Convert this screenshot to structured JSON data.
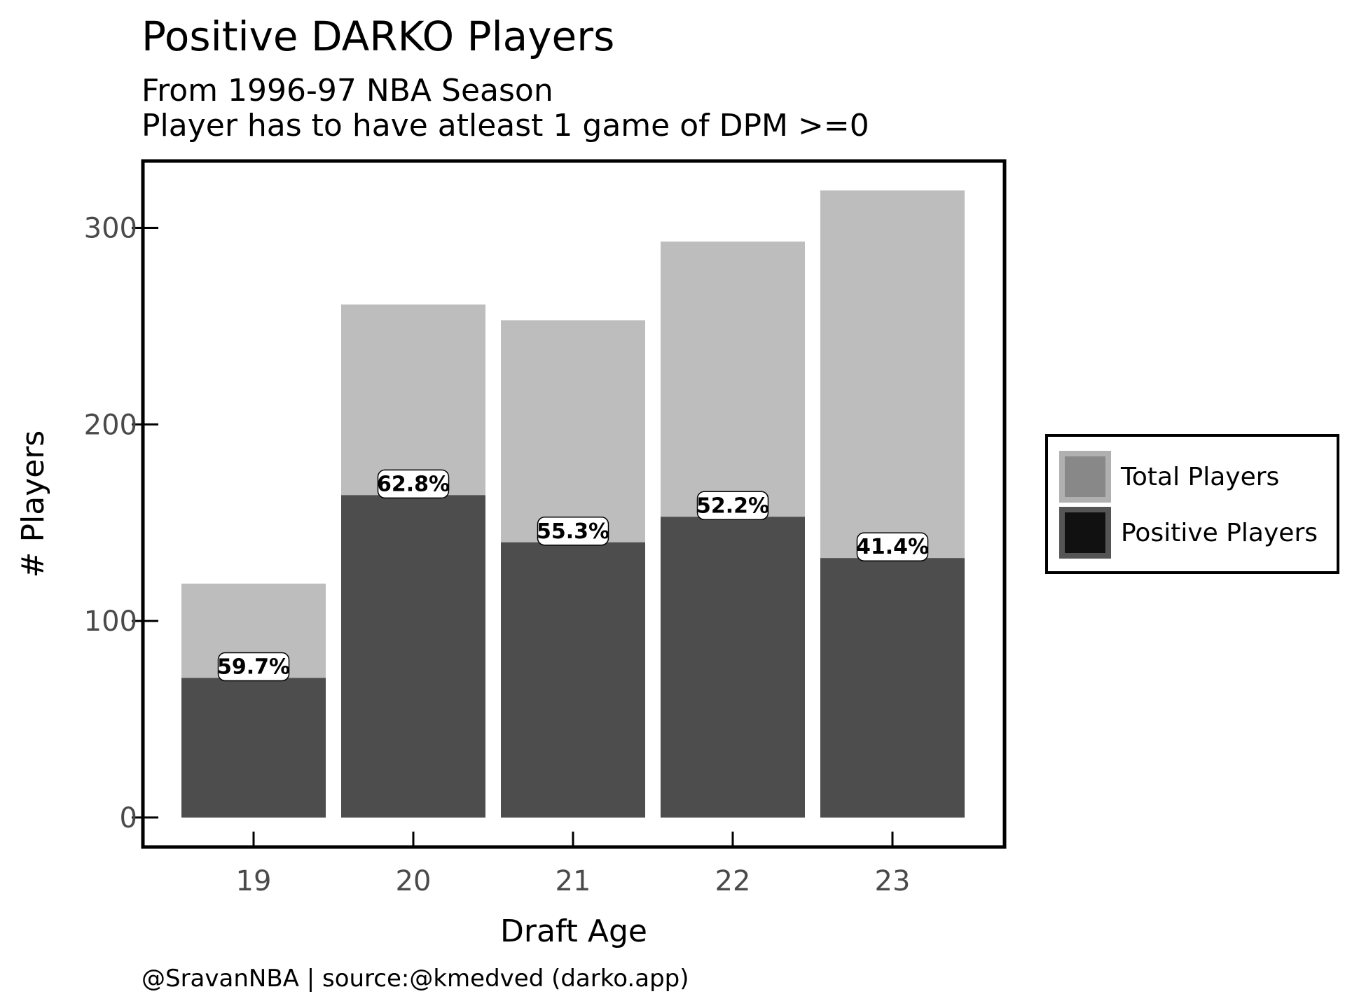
{
  "header": {
    "title": "Positive DARKO Players",
    "subtitle_line1": "From 1996-97 NBA Season",
    "subtitle_line2": "Player has to have atleast 1 game of DPM >=0"
  },
  "footer": {
    "credit": "@SravanNBA | source:@kmedved (darko.app)"
  },
  "colors": {
    "total": "#bdbdbd",
    "positive": "#4d4d4d",
    "legend_total": "#888888",
    "legend_positive": "#111111"
  },
  "chart_data": {
    "type": "bar",
    "title": "Positive DARKO Players",
    "xlabel": "Draft Age",
    "ylabel": "# Players",
    "categories": [
      "19",
      "20",
      "21",
      "22",
      "23"
    ],
    "ylim": [
      -15,
      334
    ],
    "yticks": [
      0,
      100,
      200,
      300
    ],
    "grid": false,
    "legend_position": "right",
    "series": [
      {
        "name": "Total Players",
        "values": [
          119,
          261,
          253,
          293,
          319
        ]
      },
      {
        "name": "Positive Players",
        "values": [
          71,
          164,
          140,
          153,
          132
        ]
      }
    ],
    "annotations": [
      "59.7%",
      "62.8%",
      "55.3%",
      "52.2%",
      "41.4%"
    ]
  }
}
